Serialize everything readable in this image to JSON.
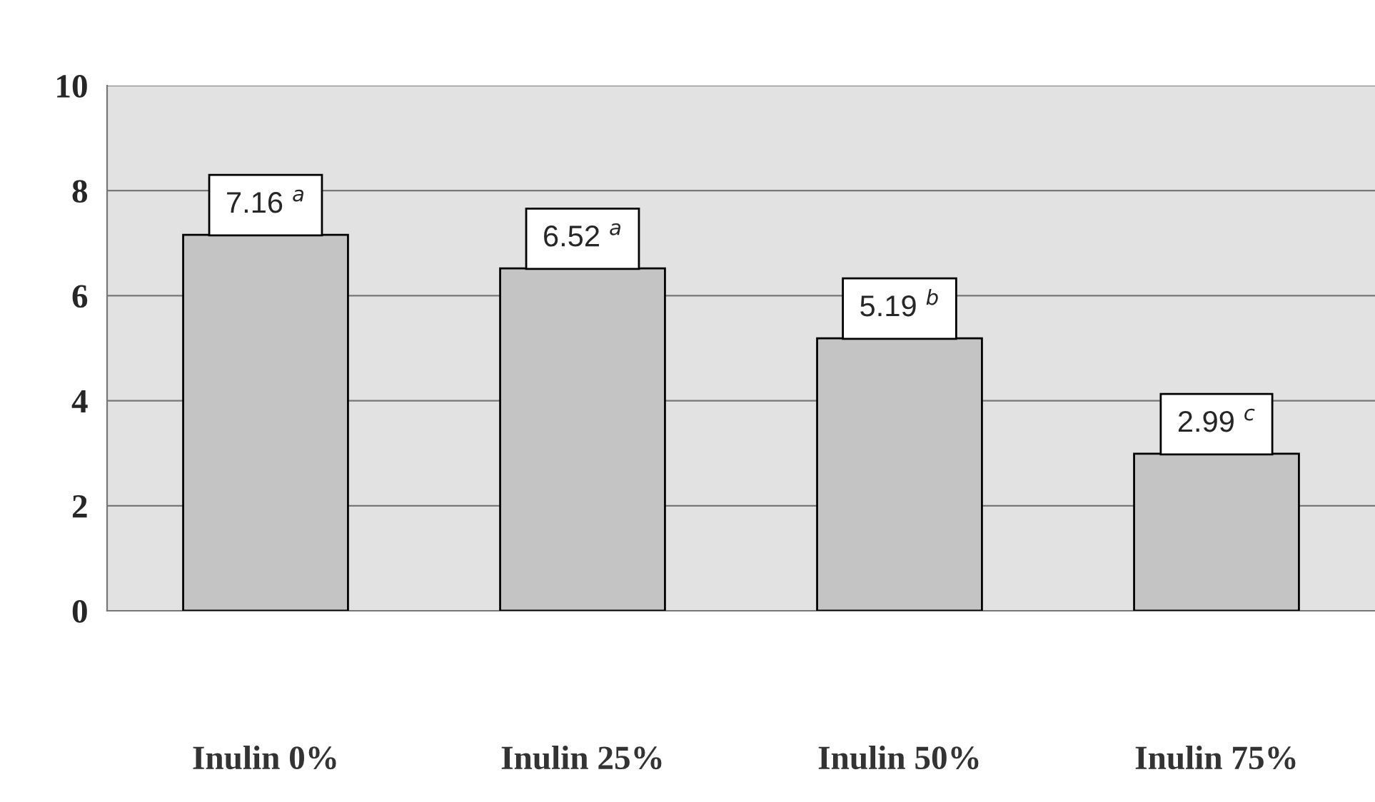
{
  "chart_data": {
    "type": "bar",
    "categories": [
      "Inulin 0%",
      "Inulin 25%",
      "Inulin 50%",
      "Inulin 75%"
    ],
    "values": [
      7.16,
      6.52,
      5.19,
      2.99
    ],
    "value_labels": [
      "7.16 $^{a}$",
      "6.52 $^{a}$",
      "5.19 $^{b}$",
      "2.99 $^{c}$"
    ],
    "color": "#c4c4c4",
    "ylim": [
      0,
      10
    ],
    "yticks": [
      0,
      2,
      4,
      6,
      8,
      10
    ],
    "grid": "y"
  }
}
